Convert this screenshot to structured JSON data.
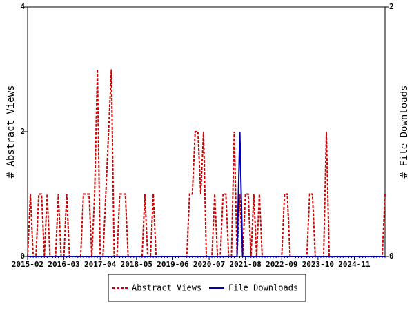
{
  "chart_data": {
    "type": "line",
    "categories": [
      "2015-02",
      null,
      null,
      null,
      null,
      null,
      null,
      null,
      null,
      null,
      null,
      null,
      null,
      "2016-03",
      null,
      null,
      null,
      null,
      null,
      null,
      null,
      null,
      null,
      null,
      null,
      null,
      "2017-04",
      null,
      null,
      null,
      null,
      null,
      null,
      null,
      null,
      null,
      null,
      null,
      null,
      "2018-05",
      null,
      null,
      null,
      null,
      null,
      null,
      null,
      null,
      null,
      null,
      null,
      null,
      "2019-06",
      null,
      null,
      null,
      null,
      null,
      null,
      null,
      null,
      null,
      null,
      null,
      null,
      "2020-07",
      null,
      null,
      null,
      null,
      null,
      null,
      null,
      null,
      null,
      null,
      null,
      null,
      "2021-08",
      null,
      null,
      null,
      null,
      null,
      null,
      null,
      null,
      null,
      null,
      null,
      null,
      "2022-09",
      null,
      null,
      null,
      null,
      null,
      null,
      null,
      null,
      null,
      null,
      null,
      null,
      "2023-10",
      null,
      null,
      null,
      null,
      null,
      null,
      null,
      null,
      null,
      null,
      null,
      null,
      "2024-11",
      null,
      null,
      null,
      null,
      null,
      null,
      null,
      null,
      null,
      null,
      null
    ],
    "series": [
      {
        "name": "Abstract Views",
        "color": "#cc0000",
        "values": [
          0,
          1,
          0,
          0,
          1,
          1,
          0,
          1,
          0,
          0,
          0,
          1,
          0,
          0,
          1,
          0,
          0,
          0,
          0,
          0,
          1,
          1,
          1,
          0,
          1,
          3,
          0,
          0,
          1,
          2,
          3,
          0,
          0,
          1,
          1,
          1,
          0,
          0,
          0,
          0,
          0,
          0,
          1,
          0,
          0,
          1,
          0,
          0,
          0,
          0,
          0,
          0,
          0,
          0,
          0,
          0,
          0,
          0,
          1,
          1,
          2,
          2,
          1,
          2,
          0,
          0,
          0,
          1,
          0,
          0,
          1,
          1,
          0,
          0,
          2,
          0,
          1,
          0,
          1,
          1,
          0,
          1,
          0,
          1,
          0,
          0,
          0,
          0,
          0,
          0,
          0,
          0,
          1,
          1,
          0,
          0,
          0,
          0,
          0,
          0,
          0,
          1,
          1,
          0,
          0,
          0,
          0,
          2,
          0,
          0,
          0,
          0,
          0,
          0,
          0,
          0,
          0,
          0,
          0,
          0,
          0,
          0,
          0,
          0,
          0,
          0,
          0,
          0,
          1
        ]
      },
      {
        "name": "File Downloads",
        "color": "#0000aa",
        "axis": "y2",
        "values": [
          0,
          0,
          0,
          0,
          0,
          0,
          0,
          0,
          0,
          0,
          0,
          0,
          0,
          0,
          0,
          0,
          0,
          0,
          0,
          0,
          0,
          0,
          0,
          0,
          0,
          0,
          0,
          0,
          0,
          0,
          0,
          0,
          0,
          0,
          0,
          0,
          0,
          0,
          0,
          0,
          0,
          0,
          0,
          0,
          0,
          0,
          0,
          0,
          0,
          0,
          0,
          0,
          0,
          0,
          0,
          0,
          0,
          0,
          0,
          0,
          0,
          0,
          0,
          0,
          0,
          0,
          0,
          0,
          0,
          0,
          0,
          0,
          0,
          0,
          0,
          0,
          1,
          0,
          0,
          0,
          0,
          0,
          0,
          0,
          0,
          0,
          0,
          0,
          0,
          0,
          0,
          0,
          0,
          0,
          0,
          0,
          0,
          0,
          0,
          0,
          0,
          0,
          0,
          0,
          0,
          0,
          0,
          0,
          0,
          0,
          0,
          0,
          0,
          0,
          0,
          0,
          0,
          0,
          0,
          0,
          0,
          0,
          0,
          0,
          0,
          0,
          0,
          0,
          0
        ]
      }
    ],
    "y_label": "# Abstract Views",
    "y2_label": "# File Downloads",
    "ylim": [
      0,
      4
    ],
    "yticks": [
      0,
      2,
      4
    ],
    "y2lim": [
      0,
      2
    ],
    "y2ticks": [
      0,
      2
    ]
  }
}
